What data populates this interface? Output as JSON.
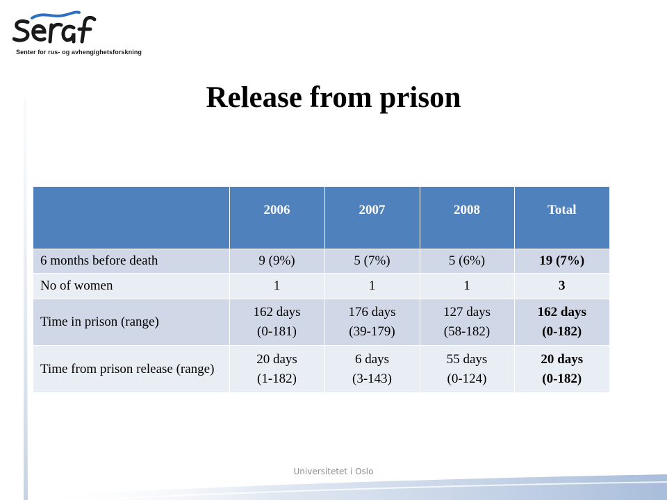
{
  "logo": {
    "wordmark": "seraf",
    "tagline": "Senter for rus- og avhengighetsforskning",
    "colors": {
      "wordmark": "#1a1a1a",
      "wave": "#2e6fc0"
    }
  },
  "slide": {
    "title": "Release from prison"
  },
  "table": {
    "headers": [
      "",
      "2006",
      "2007",
      "2008",
      "Total"
    ],
    "rows": [
      {
        "label": "6 months before death",
        "cells": [
          [
            "9 (9%)"
          ],
          [
            "5 (7%)"
          ],
          [
            "5 (6%)"
          ],
          [
            "19 (7%)"
          ]
        ]
      },
      {
        "label": "No of women",
        "cells": [
          [
            "1"
          ],
          [
            "1"
          ],
          [
            "1"
          ],
          [
            "3"
          ]
        ]
      },
      {
        "label": "Time in prison (range)",
        "cells": [
          [
            "162 days",
            "(0-181)"
          ],
          [
            "176 days",
            "(39-179)"
          ],
          [
            "127 days",
            "(58-182)"
          ],
          [
            "162 days",
            "(0-182)"
          ]
        ]
      },
      {
        "label": "Time from prison release (range)",
        "cells": [
          [
            "20 days",
            "(1-182)"
          ],
          [
            "6 days",
            "(3-143)"
          ],
          [
            "55 days",
            "(0-124)"
          ],
          [
            "20 days",
            "(0-182)"
          ]
        ]
      }
    ],
    "colors": {
      "header": "#4f81bd",
      "row_odd": "#d0d8e8",
      "row_even": "#e9edf4"
    }
  },
  "footer": {
    "text": "Universitetet i Oslo"
  }
}
